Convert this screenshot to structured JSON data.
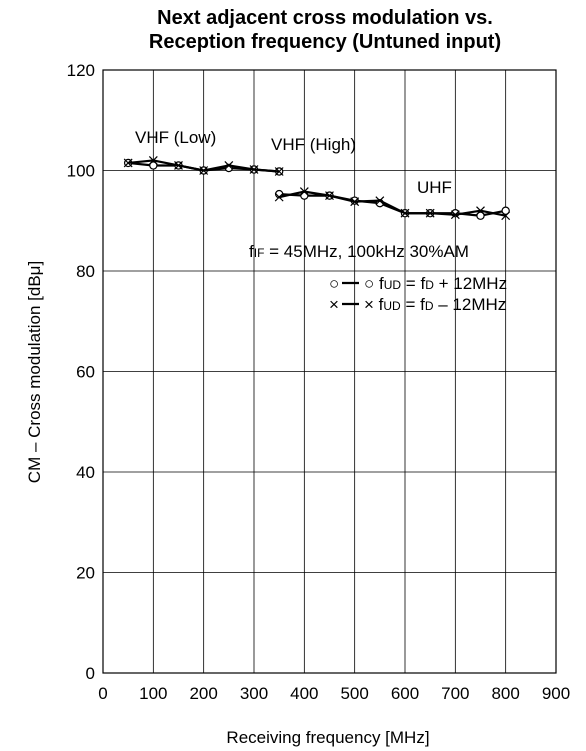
{
  "chart_data": {
    "type": "line",
    "title_line1": "Next adjacent cross modulation vs.",
    "title_line2": "Reception frequency (Untuned input)",
    "xlabel": "Receiving  frequency [MHz]",
    "ylabel": "CM – Cross modulation [dBμ]",
    "xlim": [
      0,
      900
    ],
    "ylim": [
      0,
      120
    ],
    "xticks": [
      0,
      100,
      200,
      300,
      400,
      500,
      600,
      700,
      800,
      900
    ],
    "yticks": [
      0,
      20,
      40,
      60,
      80,
      100,
      120
    ],
    "grid": true,
    "annotations": {
      "vhf_low": "VHF (Low)",
      "vhf_high": "VHF (High)",
      "uhf": "UHF",
      "conditions": "fIF = 45MHz, 100kHz   30%AM"
    },
    "series": [
      {
        "name": "fUD = fD + 12MHz",
        "marker": "circle",
        "segments": [
          [
            [
              50,
              101.5
            ],
            [
              100,
              101
            ],
            [
              150,
              101
            ],
            [
              200,
              100
            ],
            [
              250,
              100.5
            ],
            [
              300,
              100.2
            ],
            [
              350,
              99.8
            ]
          ],
          [
            [
              350,
              95.3
            ],
            [
              400,
              95
            ],
            [
              450,
              95
            ],
            [
              500,
              94
            ],
            [
              550,
              93.5
            ],
            [
              600,
              91.5
            ],
            [
              650,
              91.5
            ],
            [
              700,
              91.5
            ],
            [
              750,
              91
            ],
            [
              800,
              92
            ]
          ]
        ]
      },
      {
        "name": "fUD = fD – 12MHz",
        "marker": "cross",
        "segments": [
          [
            [
              50,
              101.5
            ],
            [
              100,
              102
            ],
            [
              150,
              101
            ],
            [
              200,
              100
            ],
            [
              250,
              101
            ],
            [
              300,
              100.2
            ],
            [
              350,
              99.8
            ]
          ],
          [
            [
              350,
              94.7
            ],
            [
              400,
              95.8
            ],
            [
              450,
              95
            ],
            [
              500,
              93.8
            ],
            [
              550,
              94
            ],
            [
              600,
              91.5
            ],
            [
              650,
              91.5
            ],
            [
              700,
              91.2
            ],
            [
              750,
              92
            ],
            [
              800,
              91
            ]
          ]
        ]
      }
    ],
    "legend": {
      "placement": "right, inside plot",
      "items": [
        {
          "symbol_left": "○",
          "symbol_right": "○",
          "f": "f",
          "sub1": "UD",
          "eq": " = f",
          "sub2": "D",
          "rest": " + 12MHz"
        },
        {
          "symbol_left": "×",
          "symbol_right": "×",
          "f": "f",
          "sub1": "UD",
          "eq": " = f",
          "sub2": "D",
          "rest": " – 12MHz"
        }
      ]
    },
    "conditions_parts": {
      "f": "f",
      "sub": "IF",
      "rest": " = 45MHz, 100kHz   30%AM"
    }
  }
}
